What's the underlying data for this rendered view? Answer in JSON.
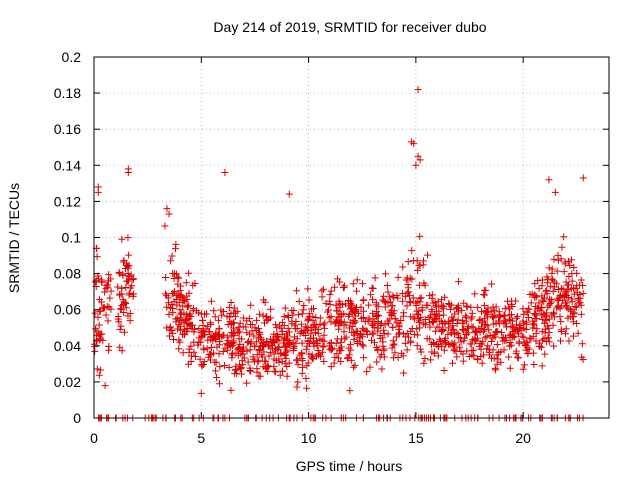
{
  "chart_data": {
    "type": "scatter",
    "title": "Day 214 of 2019, SRMTID for receiver dubo",
    "xlabel": "GPS time / hours",
    "ylabel": "SRMTID / TECUs",
    "xlim": [
      0,
      24
    ],
    "ylim": [
      0,
      0.2
    ],
    "x_ticks": [
      0,
      5,
      10,
      15,
      20
    ],
    "y_ticks": [
      0,
      0.02,
      0.04,
      0.06,
      0.08,
      0.1,
      0.12,
      0.14,
      0.16,
      0.18,
      0.2
    ],
    "x_tick_labels": [
      "0",
      "5",
      "10",
      "15",
      "20"
    ],
    "y_tick_labels": [
      "0",
      "0.02",
      "0.04",
      "0.06",
      "0.08",
      "0.1",
      "0.12",
      "0.14",
      "0.16",
      "0.18",
      "0.2"
    ],
    "grid": true,
    "marker": "+",
    "color": "#e00000",
    "coverage_segments_hours": [
      [
        0,
        0.8
      ],
      [
        1.1,
        1.9
      ],
      [
        3.3,
        22.8
      ]
    ],
    "notable_points": [
      {
        "x": 0.2,
        "y": 0.128
      },
      {
        "x": 0.2,
        "y": 0.125
      },
      {
        "x": 1.6,
        "y": 0.138
      },
      {
        "x": 1.6,
        "y": 0.136
      },
      {
        "x": 3.4,
        "y": 0.116
      },
      {
        "x": 3.5,
        "y": 0.113
      },
      {
        "x": 6.1,
        "y": 0.136
      },
      {
        "x": 9.1,
        "y": 0.124
      },
      {
        "x": 14.8,
        "y": 0.153
      },
      {
        "x": 14.9,
        "y": 0.152
      },
      {
        "x": 15.1,
        "y": 0.182
      },
      {
        "x": 15.1,
        "y": 0.145
      },
      {
        "x": 15.2,
        "y": 0.143
      },
      {
        "x": 15.0,
        "y": 0.14
      },
      {
        "x": 21.2,
        "y": 0.132
      },
      {
        "x": 22.8,
        "y": 0.133
      },
      {
        "x": 21.5,
        "y": 0.125
      }
    ],
    "series": [
      {
        "name": "SRMTID",
        "profile": [
          {
            "x": 0.0,
            "mean": 0.058,
            "spread": 0.03
          },
          {
            "x": 0.5,
            "mean": 0.058,
            "spread": 0.028
          },
          {
            "x": 1.0,
            "mean": 0.06,
            "spread": 0.025
          },
          {
            "x": 1.8,
            "mean": 0.08,
            "spread": 0.02
          },
          {
            "x": 3.3,
            "mean": 0.075,
            "spread": 0.025
          },
          {
            "x": 4.0,
            "mean": 0.06,
            "spread": 0.022
          },
          {
            "x": 5.0,
            "mean": 0.045,
            "spread": 0.018
          },
          {
            "x": 7.0,
            "mean": 0.042,
            "spread": 0.016
          },
          {
            "x": 8.5,
            "mean": 0.04,
            "spread": 0.016
          },
          {
            "x": 10.0,
            "mean": 0.045,
            "spread": 0.018
          },
          {
            "x": 12.0,
            "mean": 0.052,
            "spread": 0.02
          },
          {
            "x": 14.0,
            "mean": 0.055,
            "spread": 0.02
          },
          {
            "x": 15.0,
            "mean": 0.06,
            "spread": 0.025
          },
          {
            "x": 16.0,
            "mean": 0.052,
            "spread": 0.018
          },
          {
            "x": 17.5,
            "mean": 0.045,
            "spread": 0.016
          },
          {
            "x": 19.0,
            "mean": 0.05,
            "spread": 0.018
          },
          {
            "x": 20.0,
            "mean": 0.048,
            "spread": 0.018
          },
          {
            "x": 21.0,
            "mean": 0.06,
            "spread": 0.022
          },
          {
            "x": 22.0,
            "mean": 0.068,
            "spread": 0.022
          },
          {
            "x": 22.8,
            "mean": 0.065,
            "spread": 0.022
          }
        ],
        "approx_point_count": 1500
      }
    ]
  }
}
